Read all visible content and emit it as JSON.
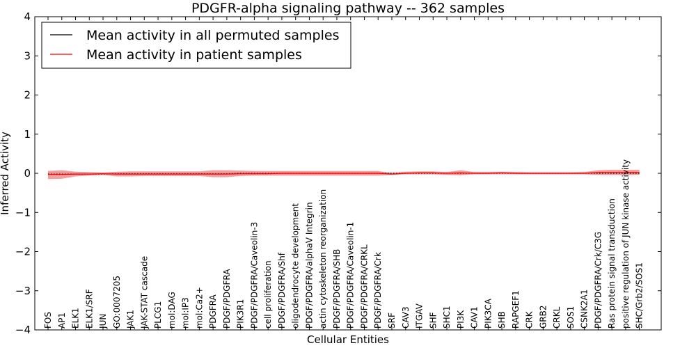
{
  "colors": {
    "patient": "#ff0000",
    "patient_band": "#f08080",
    "permuted": "#000000",
    "permuted_band": "#c8c8d8",
    "axes": "#000000"
  },
  "chart_data": {
    "type": "line",
    "title": "PDGFR-alpha signaling pathway -- 362 samples",
    "xlabel": "Cellular Entities",
    "ylabel": "Inferred Activity",
    "ylim": [
      -4,
      4
    ],
    "yticks": [
      -4,
      -3,
      -2,
      -1,
      0,
      1,
      2,
      3,
      4
    ],
    "ytick_labels": [
      "−4",
      "−3",
      "−2",
      "−1",
      "0",
      "1",
      "2",
      "3",
      "4"
    ],
    "grid": false,
    "legend_position": "top-left",
    "categories": [
      "FOS",
      "AP1",
      "ELK1",
      "ELK1/SRF",
      "JUN",
      "GO:0007205",
      "JAK1",
      "JAK-STAT cascade",
      "PLCG1",
      "mol:DAG",
      "mol:IP3",
      "mol:Ca2+",
      "PDGFRA",
      "PDGF/PDGFRA",
      "PIK3R1",
      "PDGF/PDGFRA/Caveolin-3",
      "cell proliferation",
      "PDGF/PDGFRA/Shf",
      "oligodendrocyte development",
      "PDGF/PDGFRA/alphaV Integrin",
      "actin cytoskeleton reorganization",
      "PDGF/PDGFRA/SHB",
      "PDGF/PDGFRA/Caveolin-1",
      "PDGF/PDGFRA/CRKL",
      "PDGF/PDGFRA/Crk",
      "SRF",
      "CAV3",
      "ITGAV",
      "SHF",
      "SHC1",
      "PI3K",
      "CAV1",
      "PIK3CA",
      "SHB",
      "RAPGEF1",
      "CRK",
      "GRB2",
      "CRKL",
      "SOS1",
      "CSNK2A1",
      "PDGF/PDGFRA/Crk/C3G",
      "Ras protein signal transduction",
      "positive regulation of JUN kinase activity",
      "SHC/Grb2/SOS1"
    ],
    "series": [
      {
        "name": "Mean activity in all permuted samples",
        "values": [
          -0.02,
          -0.02,
          -0.02,
          -0.02,
          -0.02,
          -0.01,
          -0.01,
          -0.01,
          -0.01,
          -0.01,
          -0.01,
          -0.01,
          -0.01,
          -0.01,
          0.0,
          0.0,
          0.0,
          0.0,
          0.0,
          0.0,
          0.0,
          0.0,
          0.0,
          0.0,
          0.0,
          0.0,
          0.0,
          0.0,
          0.0,
          0.0,
          0.0,
          0.0,
          0.0,
          0.0,
          0.0,
          0.0,
          0.0,
          0.0,
          0.0,
          0.0,
          0.0,
          0.0,
          0.0,
          0.0
        ],
        "lower": [
          -0.05,
          -0.05,
          -0.05,
          -0.05,
          -0.05,
          -0.05,
          -0.05,
          -0.05,
          -0.05,
          -0.05,
          -0.05,
          -0.05,
          -0.05,
          -0.05,
          -0.04,
          -0.04,
          -0.04,
          -0.04,
          -0.04,
          -0.04,
          -0.04,
          -0.04,
          -0.04,
          -0.04,
          -0.04,
          -0.04,
          -0.04,
          -0.04,
          -0.04,
          -0.04,
          -0.04,
          -0.04,
          -0.04,
          -0.04,
          -0.04,
          -0.04,
          -0.04,
          -0.04,
          -0.04,
          -0.04,
          -0.04,
          -0.04,
          -0.04,
          -0.04
        ],
        "upper": [
          0.03,
          0.03,
          0.03,
          0.03,
          0.03,
          0.03,
          0.03,
          0.03,
          0.03,
          0.03,
          0.03,
          0.03,
          0.03,
          0.03,
          0.04,
          0.04,
          0.04,
          0.04,
          0.04,
          0.04,
          0.04,
          0.04,
          0.04,
          0.04,
          0.04,
          0.04,
          0.04,
          0.04,
          0.04,
          0.04,
          0.04,
          0.04,
          0.04,
          0.04,
          0.04,
          0.04,
          0.04,
          0.04,
          0.04,
          0.04,
          0.04,
          0.04,
          0.04,
          0.04
        ]
      },
      {
        "name": "Mean activity in patient samples",
        "values": [
          -0.03,
          -0.03,
          -0.02,
          -0.02,
          -0.01,
          -0.02,
          -0.02,
          -0.02,
          -0.02,
          -0.02,
          -0.02,
          -0.02,
          -0.02,
          -0.02,
          -0.01,
          -0.01,
          -0.01,
          0.0,
          0.0,
          0.0,
          0.0,
          0.0,
          0.0,
          0.0,
          0.0,
          -0.02,
          0.0,
          0.01,
          0.01,
          0.0,
          0.01,
          0.0,
          0.0,
          0.01,
          0.0,
          0.0,
          0.0,
          0.0,
          0.0,
          0.0,
          0.02,
          0.02,
          0.02,
          0.02
        ],
        "lower": [
          -0.15,
          -0.14,
          -0.08,
          -0.06,
          -0.04,
          -0.08,
          -0.08,
          -0.07,
          -0.07,
          -0.07,
          -0.07,
          -0.07,
          -0.1,
          -0.1,
          -0.07,
          -0.06,
          -0.06,
          -0.06,
          -0.06,
          -0.06,
          -0.06,
          -0.06,
          -0.06,
          -0.06,
          -0.06,
          -0.04,
          -0.02,
          -0.02,
          -0.02,
          -0.04,
          -0.05,
          -0.02,
          -0.02,
          -0.01,
          -0.02,
          -0.02,
          -0.02,
          -0.02,
          -0.02,
          -0.02,
          -0.04,
          -0.04,
          -0.04,
          -0.04
        ],
        "upper": [
          0.06,
          0.08,
          0.04,
          0.03,
          0.02,
          0.04,
          0.05,
          0.05,
          0.05,
          0.05,
          0.05,
          0.05,
          0.08,
          0.08,
          0.07,
          0.06,
          0.06,
          0.06,
          0.06,
          0.06,
          0.06,
          0.06,
          0.06,
          0.06,
          0.06,
          0.0,
          0.04,
          0.05,
          0.05,
          0.03,
          0.08,
          0.03,
          0.03,
          0.04,
          0.03,
          0.02,
          0.02,
          0.02,
          0.02,
          0.03,
          0.08,
          0.09,
          0.09,
          0.09
        ]
      }
    ]
  }
}
